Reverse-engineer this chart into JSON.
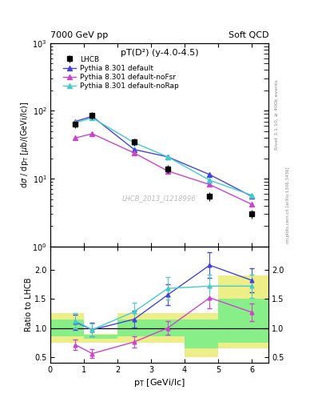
{
  "title_left": "7000 GeV pp",
  "title_right": "Soft QCD",
  "plot_title": "pT(D²) (y-4.0-4.5)",
  "xlabel": "p_{T} [GeVi/lc]",
  "ylabel_main": "dσ / dp_{T} [μb/(GeVi/lc)]",
  "ylabel_ratio": "Ratio to LHCB",
  "watermark": "LHCB_2013_I1218996",
  "right_label_top": "Rivet 3.1.10, ≥ 400k events",
  "right_label_bot": "mcplots.cern.ch [arXiv:1306.3436]",
  "lhcb_x": [
    0.75,
    1.25,
    2.5,
    3.5,
    4.75,
    6.0
  ],
  "lhcb_y": [
    63,
    85,
    35,
    14,
    5.5,
    3.0
  ],
  "lhcb_yerr": [
    7,
    10,
    4,
    1.8,
    0.8,
    0.45
  ],
  "pythia_default_x": [
    0.75,
    1.25,
    2.5,
    3.5,
    4.75,
    6.0
  ],
  "pythia_default_y": [
    70,
    83,
    27,
    21,
    11.5,
    5.5
  ],
  "pythia_default_color": "#4444dd",
  "pythia_nofsr_x": [
    0.75,
    1.25,
    2.5,
    3.5,
    4.75,
    6.0
  ],
  "pythia_nofsr_y": [
    40,
    46,
    24,
    13,
    8.2,
    4.2
  ],
  "pythia_nofsr_color": "#cc44cc",
  "pythia_norap_x": [
    0.75,
    1.25,
    2.5,
    3.5,
    4.75,
    6.0
  ],
  "pythia_norap_y": [
    67,
    79,
    34,
    21,
    9.5,
    5.7
  ],
  "pythia_norap_color": "#44cccc",
  "ratio_default_x": [
    0.75,
    1.25,
    2.5,
    3.5,
    4.75,
    6.0
  ],
  "ratio_default_y": [
    1.1,
    0.97,
    1.15,
    1.57,
    2.08,
    1.82
  ],
  "ratio_default_yerr": [
    0.13,
    0.12,
    0.14,
    0.18,
    0.22,
    0.2
  ],
  "ratio_nofsr_x": [
    0.75,
    1.25,
    2.5,
    3.5,
    4.75,
    6.0
  ],
  "ratio_nofsr_y": [
    0.71,
    0.56,
    0.76,
    1.0,
    1.52,
    1.27
  ],
  "ratio_nofsr_yerr": [
    0.09,
    0.07,
    0.09,
    0.12,
    0.18,
    0.15
  ],
  "ratio_norap_x": [
    0.75,
    1.25,
    2.5,
    3.5,
    4.75,
    6.0
  ],
  "ratio_norap_y": [
    1.12,
    0.97,
    1.28,
    1.68,
    1.72,
    1.72
  ],
  "ratio_norap_yerr": [
    0.13,
    0.11,
    0.15,
    0.19,
    0.2,
    0.2
  ],
  "ylim_main": [
    1,
    1000
  ],
  "ylim_ratio": [
    0.4,
    2.4
  ],
  "xlim": [
    0,
    6.5
  ],
  "band_yellow_x": [
    0.0,
    1.0,
    2.0,
    4.0,
    5.0,
    6.5
  ],
  "band_yellow_lo": [
    0.75,
    0.75,
    0.75,
    0.5,
    0.65,
    0.65
  ],
  "band_yellow_hi": [
    1.25,
    0.9,
    1.25,
    1.25,
    1.9,
    1.9
  ],
  "band_green_x": [
    0.0,
    1.0,
    2.0,
    4.0,
    5.0,
    6.5
  ],
  "band_green_lo": [
    0.85,
    0.82,
    0.85,
    0.65,
    0.75,
    0.75
  ],
  "band_green_hi": [
    1.15,
    0.88,
    1.15,
    1.15,
    1.5,
    1.5
  ],
  "band_yellow_color": "#eeee88",
  "band_green_color": "#88ee88"
}
